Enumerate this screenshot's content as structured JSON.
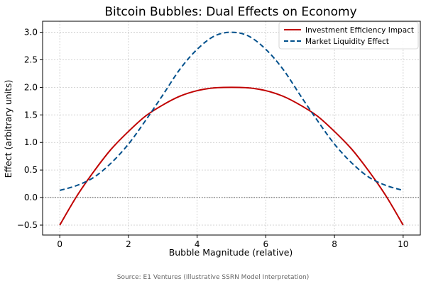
{
  "colors": {
    "investment": "#c00000",
    "liquidity": "#00508c",
    "grid": "#c8c8c8",
    "zero_line": "#444444",
    "source_text": "#666666"
  },
  "chart_data": {
    "type": "line",
    "title": "Bitcoin Bubbles: Dual Effects on Economy",
    "xlabel": "Bubble Magnitude (relative)",
    "ylabel": "Effect (arbitrary units)",
    "xlim": [
      -0.5,
      10.5
    ],
    "ylim": [
      -0.68,
      3.2
    ],
    "x_ticks": [
      0,
      2,
      4,
      6,
      8,
      10
    ],
    "x_tick_labels": [
      "0",
      "2",
      "4",
      "6",
      "8",
      "10"
    ],
    "y_ticks": [
      -0.5,
      0.0,
      0.5,
      1.0,
      1.5,
      2.0,
      2.5,
      3.0
    ],
    "y_tick_labels": [
      "−0.5",
      "0.0",
      "0.5",
      "1.0",
      "1.5",
      "2.0",
      "2.5",
      "3.0"
    ],
    "grid": true,
    "grid_style": "dotted",
    "reference_line": {
      "y": 0,
      "style": "dotted"
    },
    "legend_position": "top-right",
    "x": [
      0,
      0.5,
      1,
      1.5,
      2,
      2.5,
      3,
      3.5,
      4,
      4.5,
      5,
      5.5,
      6,
      6.5,
      7,
      7.5,
      8,
      8.5,
      9,
      9.5,
      10
    ],
    "series": [
      {
        "name": "Investment Efficiency Impact",
        "style": "solid",
        "values": [
          -0.5,
          0.03,
          0.48,
          0.88,
          1.2,
          1.48,
          1.68,
          1.84,
          1.94,
          1.99,
          2.0,
          1.99,
          1.94,
          1.84,
          1.68,
          1.48,
          1.2,
          0.88,
          0.48,
          0.03,
          -0.5
        ]
      },
      {
        "name": "Market Liquidity Effect",
        "style": "dashed",
        "values": [
          0.13,
          0.22,
          0.37,
          0.63,
          0.97,
          1.4,
          1.86,
          2.33,
          2.69,
          2.93,
          3.0,
          2.93,
          2.69,
          2.33,
          1.86,
          1.4,
          0.97,
          0.63,
          0.37,
          0.22,
          0.13
        ]
      }
    ]
  },
  "source": "Source: E1 Ventures (Illustrative SSRN Model Interpretation)"
}
